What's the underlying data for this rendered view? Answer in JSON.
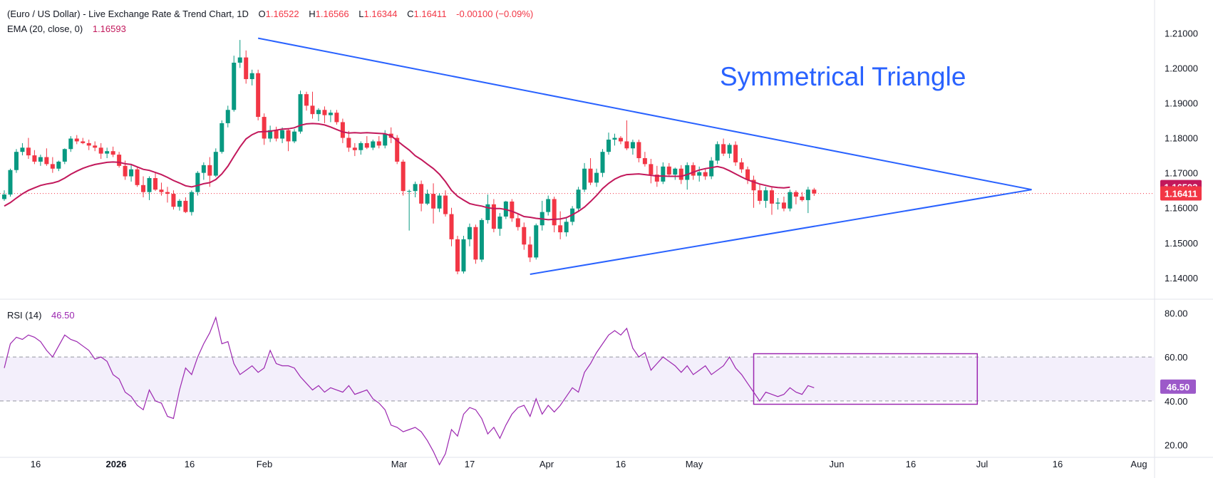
{
  "header": {
    "symbol_title": "(Euro / US Dollar) - Live Exchange Rate & Trend Chart, 1D",
    "o_label": "O",
    "o_value": "1.16522",
    "h_label": "H",
    "h_value": "1.16566",
    "l_label": "L",
    "l_value": "1.16344",
    "c_label": "C",
    "c_value": "1.16411",
    "change": "-0.00100 (−0.09%)",
    "ema_label": "EMA (20, close, 0)",
    "ema_value": "1.16593",
    "rsi_label": "RSI (14)",
    "rsi_value": "46.50"
  },
  "colors": {
    "up": "#089981",
    "down": "#f23645",
    "ema": "#c2185b",
    "rsi": "#9c27b0",
    "trend": "#2962ff",
    "band": "#f3effb",
    "annotation_text": "#2962ff",
    "box": "#9c27b0"
  },
  "chart_data": [
    {
      "type": "candlestick",
      "title": "Symmetrical Triangle",
      "y_ticks": [
        "1.21000",
        "1.20000",
        "1.19000",
        "1.18000",
        "1.17000",
        "1.16000",
        "1.15000",
        "1.14000"
      ],
      "ylim": [
        1.1355,
        1.2125
      ],
      "x_ticks": [
        "16",
        "2026",
        "16",
        "Feb",
        "Mar",
        "17",
        "Apr",
        "16",
        "May",
        "Jun",
        "16",
        "Jul",
        "16",
        "Aug"
      ],
      "price_labels": {
        "ema": "1.16593",
        "close": "1.16411"
      },
      "ohlc": [
        [
          1.1625,
          1.165,
          1.162,
          1.1638
        ],
        [
          1.1638,
          1.1712,
          1.1632,
          1.1708
        ],
        [
          1.1708,
          1.1768,
          1.17,
          1.176
        ],
        [
          1.176,
          1.1785,
          1.175,
          1.1772
        ],
        [
          1.1772,
          1.18,
          1.174,
          1.175
        ],
        [
          1.175,
          1.1765,
          1.1725,
          1.1732
        ],
        [
          1.1732,
          1.1752,
          1.172,
          1.1745
        ],
        [
          1.1745,
          1.177,
          1.172,
          1.1725
        ],
        [
          1.1725,
          1.1745,
          1.17,
          1.1712
        ],
        [
          1.1712,
          1.1735,
          1.1705,
          1.1732
        ],
        [
          1.1732,
          1.177,
          1.1725,
          1.1768
        ],
        [
          1.1768,
          1.1805,
          1.176,
          1.1798
        ],
        [
          1.1798,
          1.1808,
          1.1782,
          1.179
        ],
        [
          1.179,
          1.18,
          1.1782,
          1.1785
        ],
        [
          1.1785,
          1.1795,
          1.1765,
          1.1778
        ],
        [
          1.1778,
          1.179,
          1.1762,
          1.1772
        ],
        [
          1.1772,
          1.1785,
          1.174,
          1.1755
        ],
        [
          1.1755,
          1.1772,
          1.1742,
          1.1762
        ],
        [
          1.1762,
          1.1775,
          1.1745,
          1.1752
        ],
        [
          1.1752,
          1.176,
          1.1715,
          1.172
        ],
        [
          1.172,
          1.1735,
          1.168,
          1.169
        ],
        [
          1.169,
          1.1722,
          1.1675,
          1.171
        ],
        [
          1.171,
          1.1715,
          1.166,
          1.1665
        ],
        [
          1.1665,
          1.169,
          1.163,
          1.1645
        ],
        [
          1.1645,
          1.169,
          1.1622,
          1.1685
        ],
        [
          1.1685,
          1.17,
          1.1648,
          1.1652
        ],
        [
          1.1652,
          1.1672,
          1.1635,
          1.1645
        ],
        [
          1.1645,
          1.166,
          1.1615,
          1.164
        ],
        [
          1.164,
          1.165,
          1.1595,
          1.1603
        ],
        [
          1.1603,
          1.1625,
          1.1592,
          1.162
        ],
        [
          1.162,
          1.163,
          1.1585,
          1.1588
        ],
        [
          1.1588,
          1.165,
          1.1578,
          1.1645
        ],
        [
          1.1645,
          1.1705,
          1.1635,
          1.17
        ],
        [
          1.17,
          1.173,
          1.168,
          1.1722
        ],
        [
          1.1722,
          1.1745,
          1.166,
          1.1692
        ],
        [
          1.1692,
          1.177,
          1.1688,
          1.176
        ],
        [
          1.176,
          1.185,
          1.1755,
          1.1842
        ],
        [
          1.1842,
          1.1892,
          1.183,
          1.188
        ],
        [
          1.188,
          1.2035,
          1.1875,
          1.2015
        ],
        [
          1.2015,
          1.208,
          1.2,
          1.203
        ],
        [
          1.203,
          1.205,
          1.1955,
          1.1968
        ],
        [
          1.1968,
          1.1995,
          1.195,
          1.1985
        ],
        [
          1.1985,
          1.1995,
          1.185,
          1.186
        ],
        [
          1.186,
          1.187,
          1.178,
          1.1798
        ],
        [
          1.1798,
          1.1835,
          1.1788,
          1.1822
        ],
        [
          1.1822,
          1.1832,
          1.179,
          1.1798
        ],
        [
          1.1798,
          1.183,
          1.1785,
          1.1822
        ],
        [
          1.1822,
          1.1828,
          1.1762,
          1.179
        ],
        [
          1.179,
          1.1825,
          1.1785,
          1.1818
        ],
        [
          1.1818,
          1.1935,
          1.1812,
          1.1925
        ],
        [
          1.1925,
          1.1932,
          1.1878,
          1.1892
        ],
        [
          1.1892,
          1.1932,
          1.1855,
          1.1868
        ],
        [
          1.1868,
          1.1885,
          1.1848,
          1.188
        ],
        [
          1.188,
          1.189,
          1.1842,
          1.1865
        ],
        [
          1.1865,
          1.188,
          1.1845,
          1.1872
        ],
        [
          1.1872,
          1.188,
          1.1838,
          1.1845
        ],
        [
          1.1845,
          1.1855,
          1.1785,
          1.18
        ],
        [
          1.18,
          1.182,
          1.176,
          1.1772
        ],
        [
          1.1772,
          1.1785,
          1.1748,
          1.1765
        ],
        [
          1.1765,
          1.179,
          1.1752,
          1.1785
        ],
        [
          1.1785,
          1.1805,
          1.1768,
          1.1772
        ],
        [
          1.1772,
          1.1795,
          1.1765,
          1.179
        ],
        [
          1.179,
          1.1805,
          1.177,
          1.1778
        ],
        [
          1.1778,
          1.1822,
          1.177,
          1.1812
        ],
        [
          1.1812,
          1.183,
          1.1785,
          1.18
        ],
        [
          1.18,
          1.1808,
          1.1725,
          1.1732
        ],
        [
          1.1732,
          1.1738,
          1.1635,
          1.1648
        ],
        [
          1.1648,
          1.1652,
          1.1535,
          1.1648
        ],
        [
          1.1648,
          1.1675,
          1.163,
          1.1668
        ],
        [
          1.1668,
          1.1678,
          1.159,
          1.1612
        ],
        [
          1.1612,
          1.1652,
          1.1608,
          1.164
        ],
        [
          1.164,
          1.167,
          1.1555,
          1.1598
        ],
        [
          1.1598,
          1.1642,
          1.1588,
          1.1635
        ],
        [
          1.1635,
          1.165,
          1.1575,
          1.1582
        ],
        [
          1.1582,
          1.16,
          1.149,
          1.151
        ],
        [
          1.151,
          1.152,
          1.141,
          1.1418
        ],
        [
          1.1418,
          1.152,
          1.1412,
          1.151
        ],
        [
          1.151,
          1.1555,
          1.149,
          1.1545
        ],
        [
          1.1545,
          1.1552,
          1.144,
          1.1452
        ],
        [
          1.1452,
          1.157,
          1.1445,
          1.1565
        ],
        [
          1.1565,
          1.1638,
          1.1555,
          1.161
        ],
        [
          1.161,
          1.1625,
          1.153,
          1.154
        ],
        [
          1.154,
          1.1585,
          1.152,
          1.1575
        ],
        [
          1.1575,
          1.162,
          1.1568,
          1.1618
        ],
        [
          1.1618,
          1.1625,
          1.156,
          1.157
        ],
        [
          1.157,
          1.1582,
          1.1535,
          1.1545
        ],
        [
          1.1545,
          1.1558,
          1.148,
          1.1495
        ],
        [
          1.1495,
          1.1518,
          1.1445,
          1.1458
        ],
        [
          1.1458,
          1.1555,
          1.1452,
          1.155
        ],
        [
          1.155,
          1.162,
          1.1535,
          1.1588
        ],
        [
          1.1588,
          1.1635,
          1.1578,
          1.1625
        ],
        [
          1.1625,
          1.1632,
          1.153,
          1.155
        ],
        [
          1.155,
          1.159,
          1.151,
          1.153
        ],
        [
          1.153,
          1.157,
          1.1518,
          1.156
        ],
        [
          1.156,
          1.1605,
          1.155,
          1.1598
        ],
        [
          1.1598,
          1.166,
          1.159,
          1.1652
        ],
        [
          1.1652,
          1.1728,
          1.1645,
          1.1712
        ],
        [
          1.1712,
          1.1742,
          1.1665,
          1.1672
        ],
        [
          1.1672,
          1.1712,
          1.166,
          1.17
        ],
        [
          1.17,
          1.1768,
          1.1688,
          1.176
        ],
        [
          1.176,
          1.1815,
          1.1752,
          1.1795
        ],
        [
          1.1795,
          1.1812,
          1.1778,
          1.18
        ],
        [
          1.18,
          1.1805,
          1.1782,
          1.179
        ],
        [
          1.179,
          1.185,
          1.1765,
          1.177
        ],
        [
          1.177,
          1.1795,
          1.1752,
          1.1788
        ],
        [
          1.1788,
          1.1795,
          1.173,
          1.1742
        ],
        [
          1.1742,
          1.176,
          1.1718,
          1.1725
        ],
        [
          1.1725,
          1.174,
          1.167,
          1.1695
        ],
        [
          1.1695,
          1.172,
          1.166,
          1.1675
        ],
        [
          1.1675,
          1.173,
          1.1668,
          1.1718
        ],
        [
          1.1718,
          1.1728,
          1.169,
          1.1695
        ],
        [
          1.1695,
          1.1715,
          1.168,
          1.1712
        ],
        [
          1.1712,
          1.1722,
          1.1668,
          1.168
        ],
        [
          1.168,
          1.173,
          1.1652,
          1.1722
        ],
        [
          1.1722,
          1.173,
          1.168,
          1.1692
        ],
        [
          1.1692,
          1.1718,
          1.1675,
          1.1702
        ],
        [
          1.1702,
          1.1712,
          1.168,
          1.169
        ],
        [
          1.169,
          1.1745,
          1.1682,
          1.1735
        ],
        [
          1.1735,
          1.179,
          1.1725,
          1.1782
        ],
        [
          1.1782,
          1.1798,
          1.1748,
          1.1755
        ],
        [
          1.1755,
          1.1785,
          1.1742,
          1.178
        ],
        [
          1.178,
          1.179,
          1.172,
          1.173
        ],
        [
          1.173,
          1.1742,
          1.17,
          1.171
        ],
        [
          1.171,
          1.1718,
          1.1668,
          1.168
        ],
        [
          1.168,
          1.1692,
          1.16,
          1.165
        ],
        [
          1.165,
          1.1668,
          1.161,
          1.162
        ],
        [
          1.162,
          1.166,
          1.16,
          1.165
        ],
        [
          1.165,
          1.1658,
          1.158,
          1.1612
        ],
        [
          1.1612,
          1.1628,
          1.1595,
          1.1615
        ],
        [
          1.1615,
          1.1632,
          1.159,
          1.1598
        ],
        [
          1.1598,
          1.1652,
          1.159,
          1.1645
        ],
        [
          1.1645,
          1.165,
          1.161,
          1.1632
        ],
        [
          1.1632,
          1.1645,
          1.1618,
          1.1622
        ],
        [
          1.1622,
          1.166,
          1.1585,
          1.1652
        ],
        [
          1.1652,
          1.1657,
          1.1634,
          1.1641
        ]
      ],
      "ema_20": [
        1.1605,
        1.1615,
        1.1628,
        1.164,
        1.165,
        1.1657,
        1.1664,
        1.1668,
        1.1671,
        1.1676,
        1.1685,
        1.1696,
        1.1705,
        1.1713,
        1.1719,
        1.1724,
        1.1727,
        1.173,
        1.1731,
        1.173,
        1.1726,
        1.1724,
        1.1717,
        1.171,
        1.1707,
        1.1701,
        1.1695,
        1.1687,
        1.1678,
        1.1671,
        1.1663,
        1.166,
        1.1664,
        1.1669,
        1.1672,
        1.1681,
        1.1697,
        1.1719,
        1.1747,
        1.1774,
        1.1797,
        1.1809,
        1.1817,
        1.1818,
        1.1819,
        1.1822,
        1.1825,
        1.1826,
        1.1829,
        1.1836,
        1.184,
        1.1841,
        1.184,
        1.1837,
        1.1831,
        1.1824,
        1.1817,
        1.1814,
        1.1815,
        1.1814,
        1.1815,
        1.1814,
        1.1813,
        1.1812,
        1.1806,
        1.1792,
        1.1778,
        1.1765,
        1.1749,
        1.1738,
        1.1725,
        1.1712,
        1.1696,
        1.1675,
        1.165,
        1.1633,
        1.1622,
        1.1612,
        1.1608,
        1.1605,
        1.16,
        1.1598,
        1.1598,
        1.1595,
        1.159,
        1.1583,
        1.1575,
        1.1573,
        1.157,
        1.1568,
        1.1566,
        1.1567,
        1.1568,
        1.1572,
        1.158,
        1.159,
        1.1602,
        1.1618,
        1.1635,
        1.1655,
        1.167,
        1.1682,
        1.169,
        1.1695,
        1.1696,
        1.1697,
        1.1695,
        1.1693,
        1.1691,
        1.1691,
        1.169,
        1.169,
        1.169,
        1.1695,
        1.1702,
        1.1708,
        1.1712,
        1.1715,
        1.1718,
        1.1714,
        1.1706,
        1.1697,
        1.1688,
        1.168,
        1.1674,
        1.1668,
        1.1664,
        1.166,
        1.1658,
        1.1657,
        1.1659
      ],
      "trendlines": [
        {
          "x_index": [
            42,
            170
          ],
          "y": [
            1.2085,
            1.1652
          ]
        },
        {
          "x_index": [
            87,
            170
          ],
          "y": [
            1.141,
            1.1652
          ]
        }
      ]
    },
    {
      "type": "line",
      "title": "RSI (14)",
      "ylim": [
        15,
        85
      ],
      "y_ticks": [
        "80.00",
        "60.00",
        "40.00",
        "20.00"
      ],
      "band": [
        40,
        60
      ],
      "price_label": "46.50",
      "values": [
        55,
        66,
        69,
        68,
        70,
        69,
        67,
        63,
        60,
        65,
        70,
        68,
        67,
        65,
        63,
        59,
        60,
        58,
        52,
        50,
        44,
        42,
        38,
        36,
        45,
        40,
        39,
        33,
        32,
        45,
        55,
        52,
        60,
        66,
        71,
        78,
        66,
        67,
        57,
        52,
        54,
        56,
        53,
        55,
        63,
        57,
        56,
        56,
        55,
        51,
        48,
        45,
        47,
        44,
        46,
        45,
        44,
        47,
        43,
        44,
        45,
        41,
        39,
        36,
        29,
        28,
        26,
        27,
        28,
        26,
        22,
        17,
        11,
        16,
        27,
        24,
        34,
        37,
        36,
        32,
        25,
        28,
        23,
        29,
        34,
        37,
        38,
        33,
        41,
        34,
        38,
        35,
        38,
        42,
        46,
        44,
        53,
        57,
        62,
        66,
        70,
        72,
        70,
        73,
        64,
        60,
        62,
        54,
        57,
        60,
        58,
        56,
        53,
        56,
        52,
        54,
        56,
        52,
        54,
        56,
        60,
        55,
        52,
        48,
        44,
        40,
        44,
        43,
        42,
        43,
        46,
        44,
        43,
        47,
        46
      ],
      "annotation_box": {
        "x_index": [
          124,
          161
        ],
        "y": [
          38.5,
          61.5
        ]
      }
    }
  ]
}
